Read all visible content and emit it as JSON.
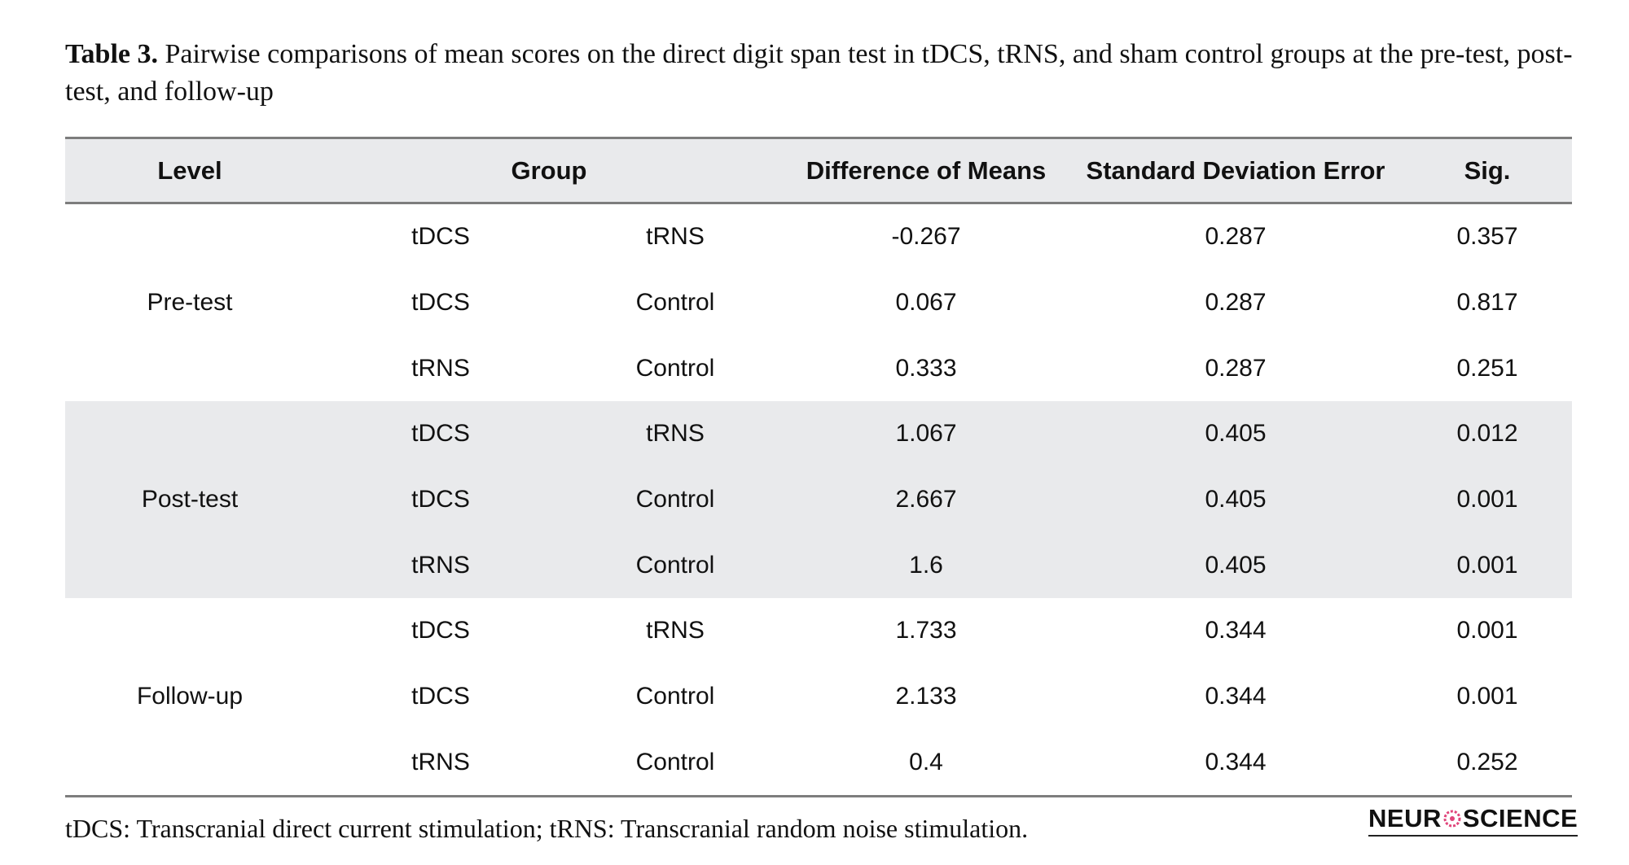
{
  "caption": {
    "label": "Table 3.",
    "text": " Pairwise comparisons of mean scores on the direct digit span test in tDCS, tRNS, and sham control groups at the pre-test, post-test, and follow-up"
  },
  "table": {
    "headers": {
      "level": "Level",
      "group": "Group",
      "difference": "Difference of Means",
      "sde": "Standard Deviation Error",
      "sig": "Sig."
    },
    "sections": [
      {
        "level": "Pre-test",
        "shaded": false,
        "rows": [
          {
            "group1": "tDCS",
            "group2": "tRNS",
            "difference": "-0.267",
            "sde": "0.287",
            "sig": "0.357"
          },
          {
            "group1": "tDCS",
            "group2": "Control",
            "difference": "0.067",
            "sde": "0.287",
            "sig": "0.817"
          },
          {
            "group1": "tRNS",
            "group2": "Control",
            "difference": "0.333",
            "sde": "0.287",
            "sig": "0.251"
          }
        ]
      },
      {
        "level": "Post-test",
        "shaded": true,
        "rows": [
          {
            "group1": "tDCS",
            "group2": "tRNS",
            "difference": "1.067",
            "sde": "0.405",
            "sig": "0.012"
          },
          {
            "group1": "tDCS",
            "group2": "Control",
            "difference": "2.667",
            "sde": "0.405",
            "sig": "0.001"
          },
          {
            "group1": "tRNS",
            "group2": "Control",
            "difference": "1.6",
            "sde": "0.405",
            "sig": "0.001"
          }
        ]
      },
      {
        "level": "Follow-up",
        "shaded": false,
        "rows": [
          {
            "group1": "tDCS",
            "group2": "tRNS",
            "difference": "1.733",
            "sde": "0.344",
            "sig": "0.001"
          },
          {
            "group1": "tDCS",
            "group2": "Control",
            "difference": "2.133",
            "sde": "0.344",
            "sig": "0.001"
          },
          {
            "group1": "tRNS",
            "group2": "Control",
            "difference": "0.4",
            "sde": "0.344",
            "sig": "0.252"
          }
        ]
      }
    ]
  },
  "footnote": "tDCS: Transcranial direct current stimulation; tRNS: Transcranial random noise stimulation.",
  "logo": {
    "text_left": "NEUR",
    "text_right": "SCIENCE",
    "accent_color": "#e0457b"
  }
}
